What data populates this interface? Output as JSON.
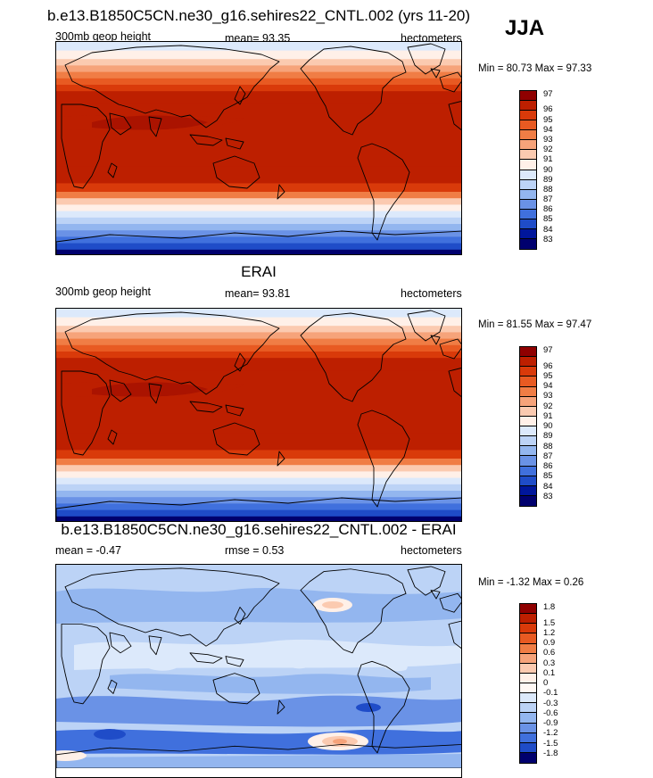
{
  "season": "JJA",
  "panels": [
    {
      "title": "b.e13.B1850C5CN.ne30_g16.sehires22_CNTL.002 (yrs 11-20)",
      "left": "300mb geop height",
      "center": "mean=  93.35",
      "right": "hectometers",
      "minmax": "Min =  80.73 Max =  97.33",
      "map_style": "abs",
      "colorbar": {
        "labels": [
          "97",
          "96",
          "95",
          "94",
          "93",
          "92",
          "91",
          "90",
          "89",
          "88",
          "87",
          "86",
          "85",
          "84",
          "83"
        ],
        "colors": [
          "#8f0000",
          "#bd1f00",
          "#d93a0a",
          "#e85a22",
          "#f07d45",
          "#f6a37a",
          "#fbcab0",
          "#fff0e8",
          "#dce9fb",
          "#bcd3f6",
          "#93b6ef",
          "#6a92e6",
          "#4070dd",
          "#1f4cc8",
          "#00169b",
          "#00006e"
        ]
      }
    },
    {
      "title": "ERAI",
      "left": "300mb geop height",
      "center": "mean=  93.81",
      "right": "hectometers",
      "minmax": "Min =  81.55 Max =  97.47",
      "map_style": "abs",
      "colorbar": {
        "labels": [
          "97",
          "96",
          "95",
          "94",
          "93",
          "92",
          "91",
          "90",
          "89",
          "88",
          "87",
          "86",
          "85",
          "84",
          "83"
        ],
        "colors": [
          "#8f0000",
          "#bd1f00",
          "#d93a0a",
          "#e85a22",
          "#f07d45",
          "#f6a37a",
          "#fbcab0",
          "#fff0e8",
          "#dce9fb",
          "#bcd3f6",
          "#93b6ef",
          "#6a92e6",
          "#4070dd",
          "#1f4cc8",
          "#00169b",
          "#00006e"
        ]
      }
    },
    {
      "title": "b.e13.B1850C5CN.ne30_g16.sehires22_CNTL.002 - ERAI",
      "left": "mean =  -0.47",
      "center": "rmse =   0.53",
      "right": "hectometers",
      "minmax": "Min =  -1.32 Max =   0.26",
      "map_style": "diff",
      "colorbar": {
        "labels": [
          "1.8",
          "1.5",
          "1.2",
          "0.9",
          "0.6",
          "0.3",
          "0.1",
          "0",
          "-0.1",
          "-0.3",
          "-0.6",
          "-0.9",
          "-1.2",
          "-1.5",
          "-1.8"
        ],
        "colors": [
          "#8f0000",
          "#bd1f00",
          "#d93a0a",
          "#e85a22",
          "#f07d45",
          "#f6a37a",
          "#fbcab0",
          "#fff0e8",
          "#fff8f4",
          "#dce9fb",
          "#bcd3f6",
          "#93b6ef",
          "#6a92e6",
          "#4070dd",
          "#1f4cc8",
          "#00006e"
        ]
      }
    }
  ],
  "chart_data": [
    {
      "type": "heatmap",
      "title": "b.e13.B1850C5CN.ne30_g16.sehires22_CNTL.002 (yrs 11-20)",
      "variable": "300mb geop height",
      "units": "hectometers",
      "mean": 93.35,
      "min": 80.73,
      "max": 97.33,
      "levels": [
        83,
        84,
        85,
        86,
        87,
        88,
        89,
        90,
        91,
        92,
        93,
        94,
        95,
        96,
        97
      ]
    },
    {
      "type": "heatmap",
      "title": "ERAI",
      "variable": "300mb geop height",
      "units": "hectometers",
      "mean": 93.81,
      "min": 81.55,
      "max": 97.47,
      "levels": [
        83,
        84,
        85,
        86,
        87,
        88,
        89,
        90,
        91,
        92,
        93,
        94,
        95,
        96,
        97
      ]
    },
    {
      "type": "heatmap",
      "title": "b.e13.B1850C5CN.ne30_g16.sehires22_CNTL.002 - ERAI",
      "units": "hectometers",
      "mean": -0.47,
      "rmse": 0.53,
      "min": -1.32,
      "max": 0.26,
      "levels": [
        -1.8,
        -1.5,
        -1.2,
        -0.9,
        -0.6,
        -0.3,
        -0.1,
        0,
        0.1,
        0.3,
        0.6,
        0.9,
        1.2,
        1.5,
        1.8
      ]
    }
  ]
}
